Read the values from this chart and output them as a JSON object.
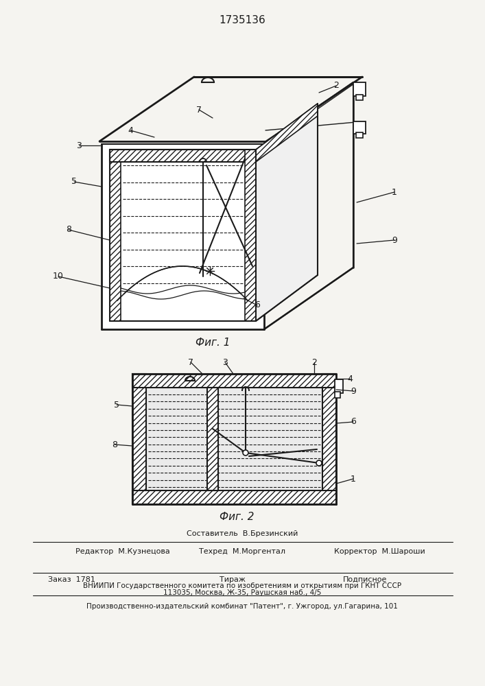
{
  "patent_number": "1735136",
  "fig1_caption": "Фиг. 1",
  "fig2_caption": "Фиг. 2",
  "bg_color": "#f5f4f0",
  "line_color": "#1a1a1a",
  "footer_sestavitel": "Составитель  В.Брезинский",
  "footer_redaktor": "Редактор  М.Кузнецова",
  "footer_tehred": "Техред  М.Моргентал",
  "footer_korrektor": "Корректор  М.Шароши",
  "footer_zakaz": "Заказ  1781",
  "footer_tirazh": "Тираж",
  "footer_podpisnoe": "Подписное",
  "footer_vniipи": "ВНИИПИ Государственного комитета по изобретениям и открытиям при ГКНТ СССР",
  "footer_addr": "113035, Москва, Ж-35, Раушская наб., 4/5",
  "footer_patent": "Производственно-издательский комбинат \"Патент\", г. Ужгород, ул.Гагарина, 101"
}
